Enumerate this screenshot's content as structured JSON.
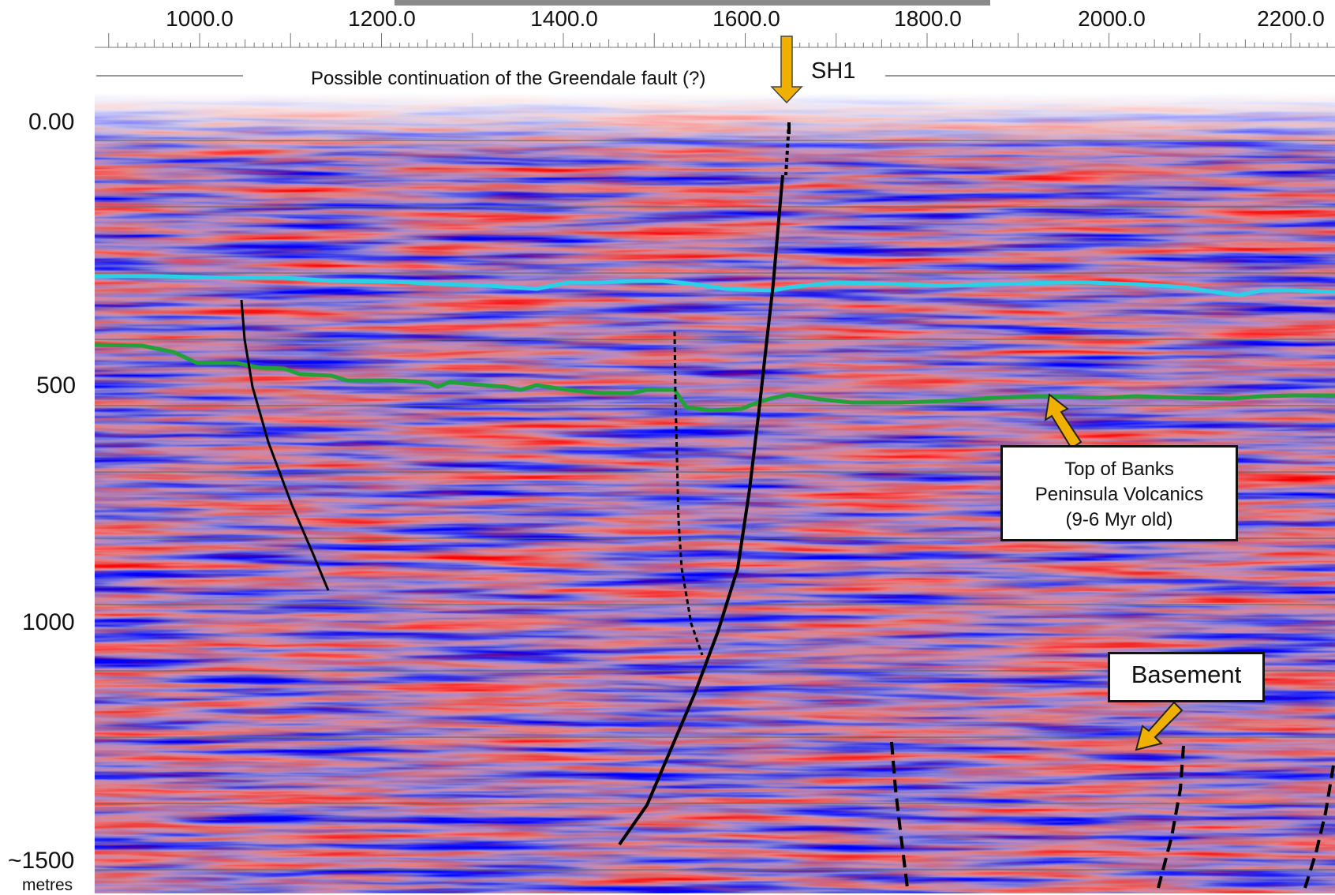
{
  "axes": {
    "x_ticks": [
      "1000.0",
      "1200.0",
      "1400.0",
      "1600.0",
      "1800.0",
      "2000.0",
      "2200.0"
    ],
    "y_ticks": [
      "0.00",
      "500",
      "1000",
      "~1500"
    ],
    "y_unit": "metres"
  },
  "annotations": {
    "fault_note": "Possible continuation of the Greendale fault (?)",
    "marker": "SH1",
    "volcanics": [
      "Top of Banks",
      "Peninsula Volcanics",
      "(9-6 Myr old)"
    ],
    "basement": "Basement"
  },
  "colors": {
    "horizon_upper": "#2ad0e8",
    "horizon_lower": "#22a03a",
    "arrow": "#f0b000",
    "fault": "#000000",
    "seismic_red": "#cc2a2a",
    "seismic_blue": "#2a44a8"
  }
}
